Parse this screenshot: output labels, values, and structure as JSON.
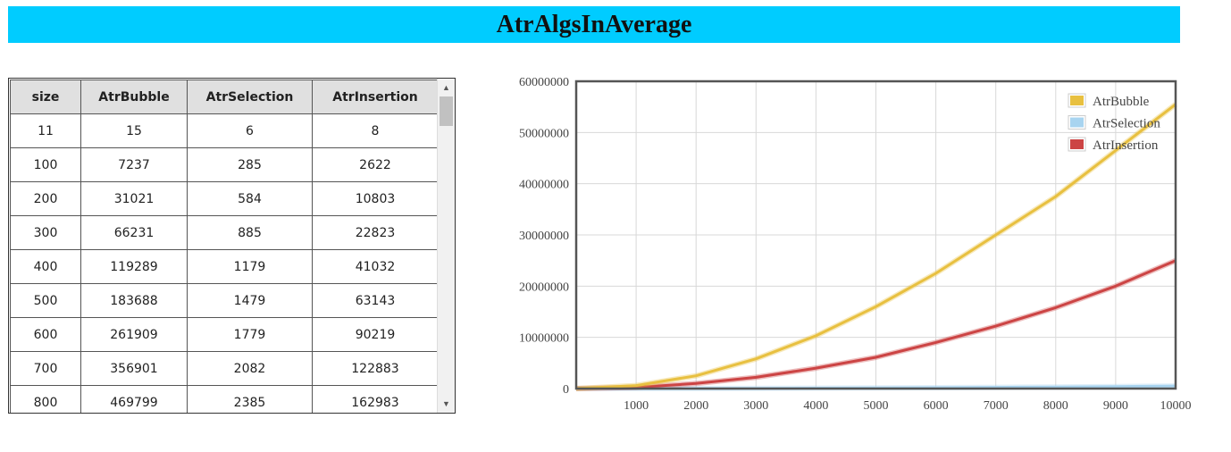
{
  "header": {
    "title": "AtrAlgsInAverage"
  },
  "table": {
    "columns": [
      "size",
      "AtrBubble",
      "AtrSelection",
      "AtrInsertion"
    ],
    "rows": [
      [
        "11",
        "15",
        "6",
        "8"
      ],
      [
        "100",
        "7237",
        "285",
        "2622"
      ],
      [
        "200",
        "31021",
        "584",
        "10803"
      ],
      [
        "300",
        "66231",
        "885",
        "22823"
      ],
      [
        "400",
        "119289",
        "1179",
        "41032"
      ],
      [
        "500",
        "183688",
        "1479",
        "63143"
      ],
      [
        "600",
        "261909",
        "1779",
        "90219"
      ],
      [
        "700",
        "356901",
        "2082",
        "122883"
      ],
      [
        "800",
        "469799",
        "2385",
        "162983"
      ]
    ]
  },
  "chart_data": {
    "type": "line",
    "title": "",
    "xlabel": "",
    "ylabel": "",
    "xlim": [
      0,
      10000
    ],
    "ylim": [
      0,
      60000000
    ],
    "x_ticks": [
      1000,
      2000,
      3000,
      4000,
      5000,
      6000,
      7000,
      8000,
      9000,
      10000
    ],
    "y_ticks": [
      0,
      10000000,
      20000000,
      30000000,
      40000000,
      50000000,
      60000000
    ],
    "grid": true,
    "legend_position": "top-right",
    "x": [
      0,
      1000,
      2000,
      3000,
      4000,
      5000,
      6000,
      7000,
      8000,
      9000,
      10000
    ],
    "series": [
      {
        "name": "AtrBubble",
        "color": "#e8c040",
        "values": [
          0,
          600000,
          2500000,
          5800000,
          10300000,
          16000000,
          22500000,
          30000000,
          37500000,
          46500000,
          55500000
        ]
      },
      {
        "name": "AtrSelection",
        "color": "#a8d4f0",
        "values": [
          0,
          5000,
          20000,
          45000,
          80000,
          125000,
          180000,
          245000,
          320000,
          405000,
          500000
        ]
      },
      {
        "name": "AtrInsertion",
        "color": "#cc4444",
        "values": [
          0,
          250000,
          1000000,
          2200000,
          4000000,
          6100000,
          9000000,
          12200000,
          15800000,
          20000000,
          25000000
        ]
      }
    ]
  }
}
